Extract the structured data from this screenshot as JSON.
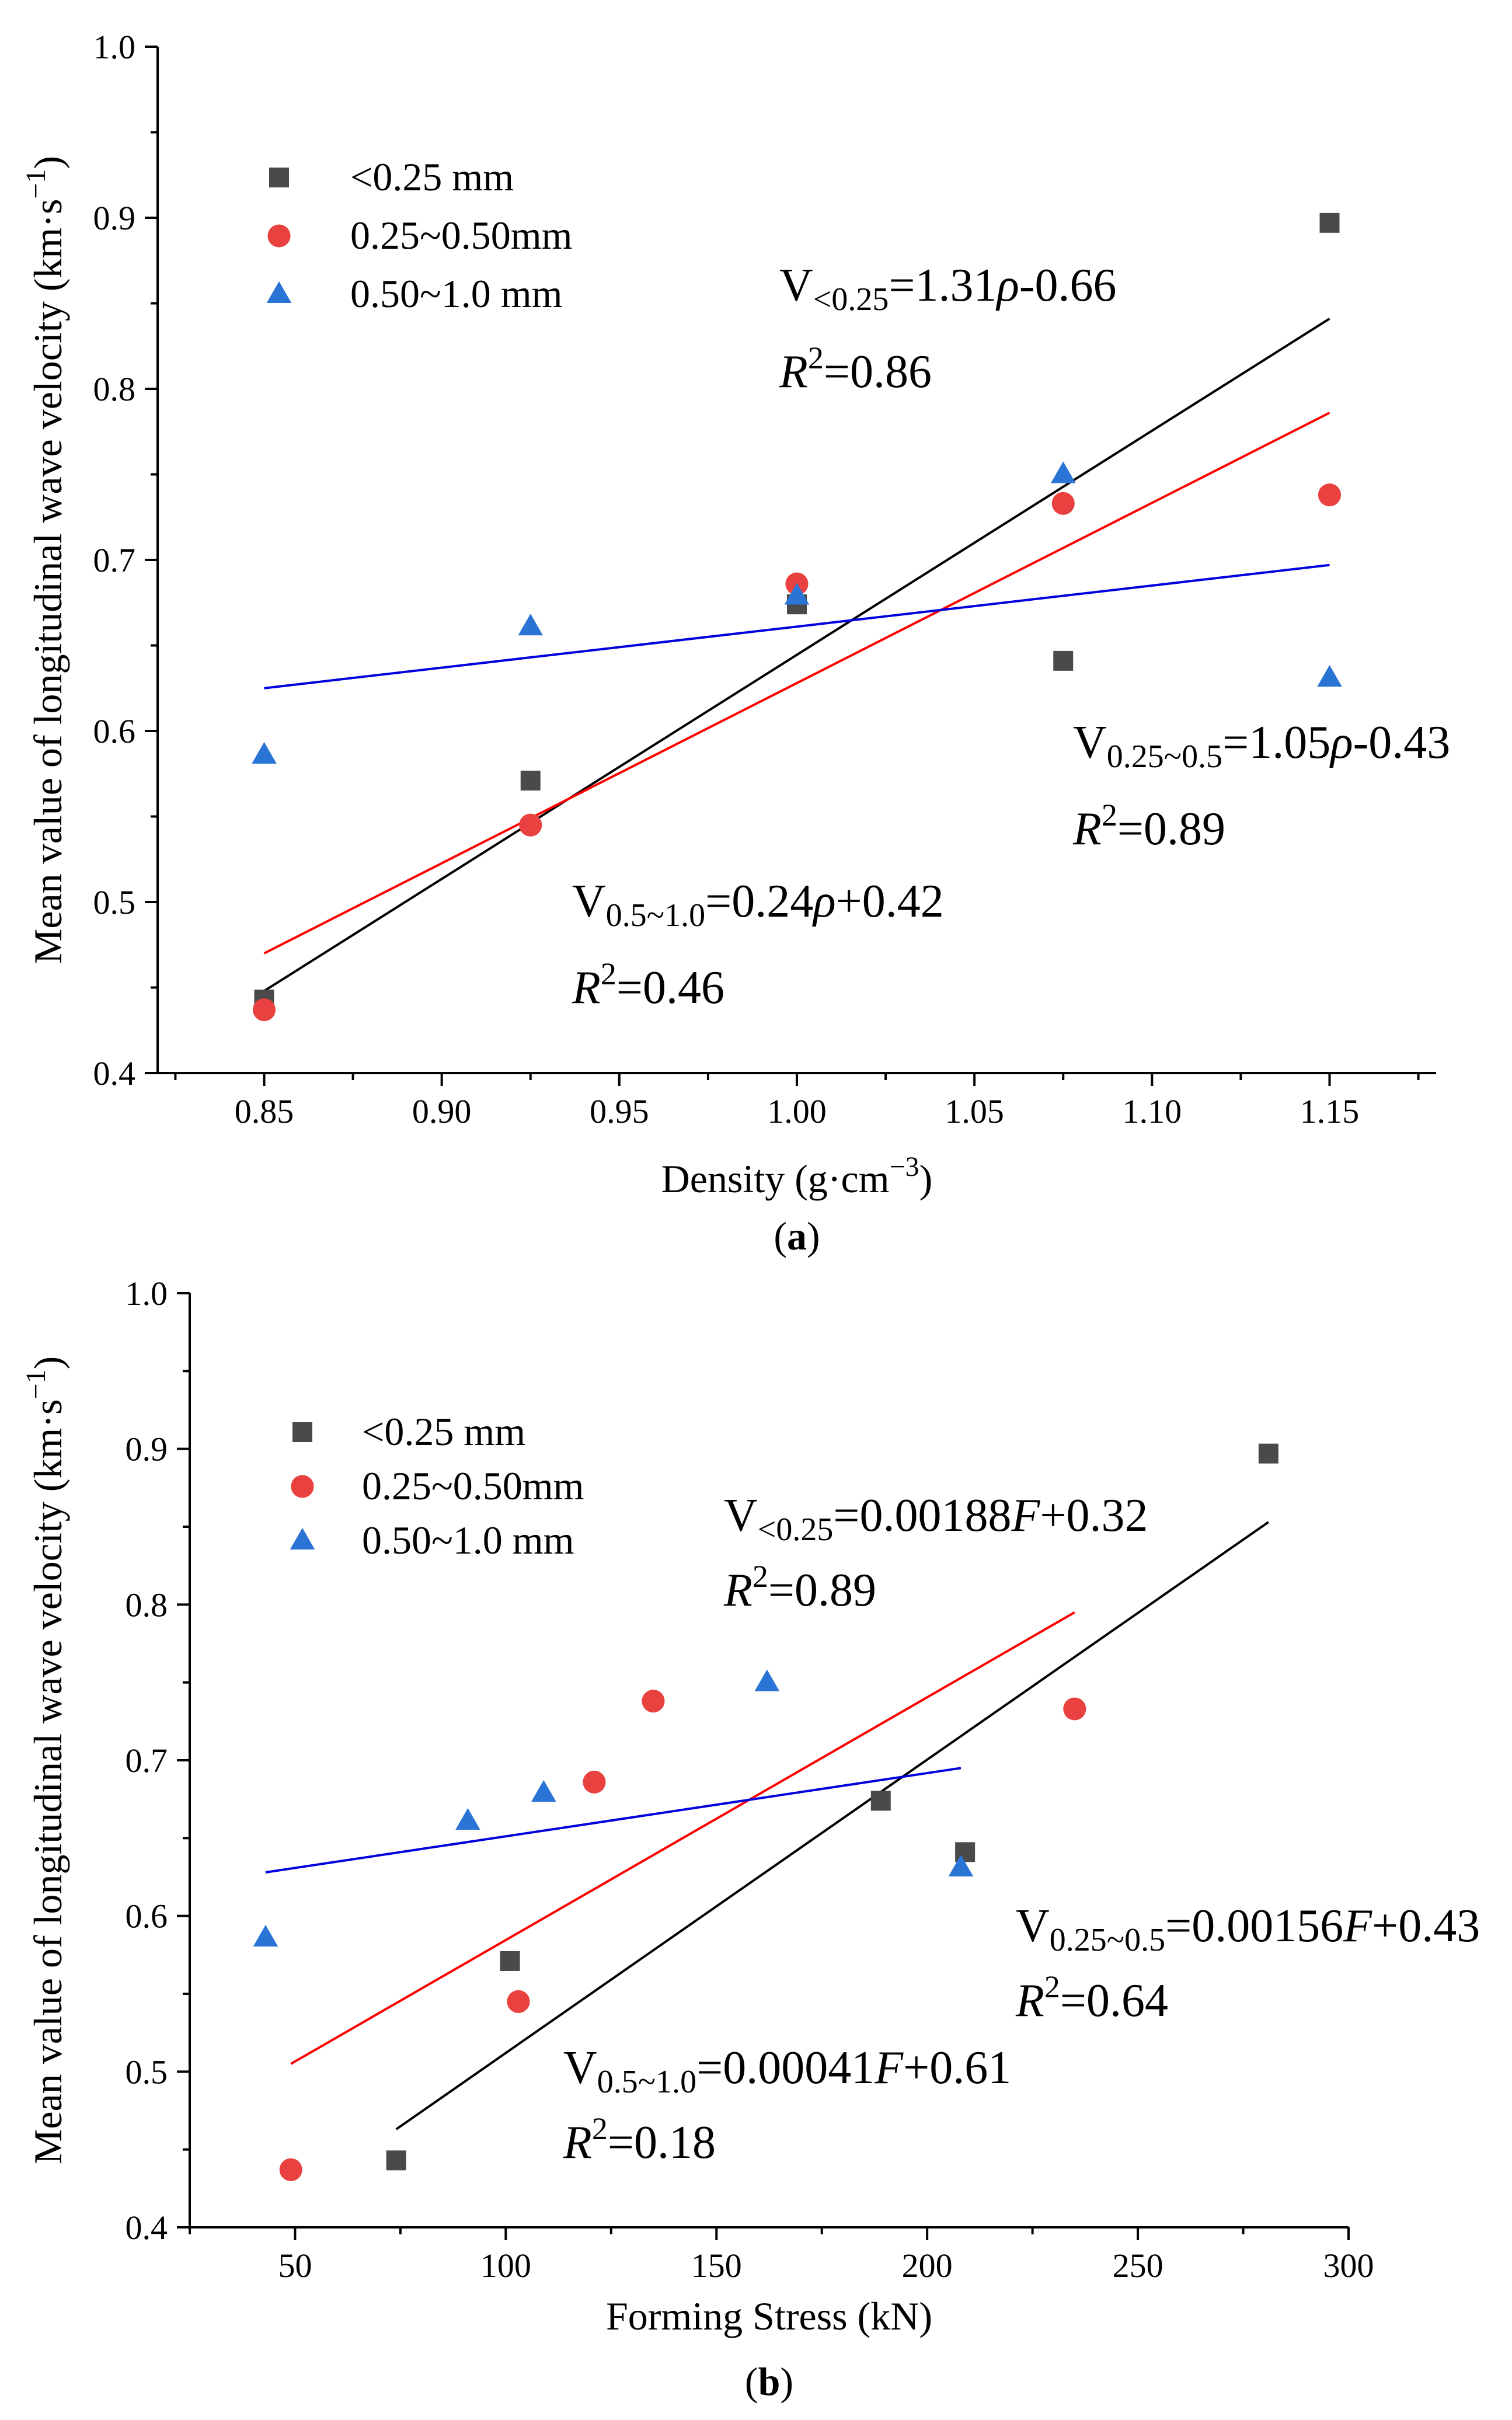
{
  "colors": {
    "series_lt025": "#4a4a4a",
    "series_025_050": "#e8413f",
    "series_050_100": "#2a74d6",
    "fit_lt025": "#000000",
    "fit_025_050": "#ff0000",
    "fit_050_100": "#0000dd"
  },
  "chart_data": [
    {
      "type": "scatter",
      "panel_label": "a",
      "xlabel": "Density (g·cm",
      "xlabel_sup": "−3",
      "xlabel_close": ")",
      "ylabel": "Mean value of longitudinal wave velocity (km·s",
      "ylabel_sup": "−1",
      "ylabel_close": ")",
      "xlim": [
        0.82,
        1.18
      ],
      "ylim": [
        0.4,
        1.0
      ],
      "xticks": [
        0.85,
        0.9,
        0.95,
        1.0,
        1.05,
        1.1,
        1.15
      ],
      "xtick_labels": [
        "0.85",
        "0.90",
        "0.95",
        "1.00",
        "1.05",
        "1.10",
        "1.15"
      ],
      "yticks": [
        0.4,
        0.5,
        0.6,
        0.7,
        0.8,
        0.9,
        1.0
      ],
      "ytick_labels": [
        "0.4",
        "0.5",
        "0.6",
        "0.7",
        "0.8",
        "0.9",
        "1.0"
      ],
      "series": [
        {
          "name": "<0.25 mm",
          "marker": "square",
          "x": [
            0.85,
            0.925,
            1.0,
            1.075,
            1.15
          ],
          "y": [
            0.443,
            0.571,
            0.674,
            0.641,
            0.897
          ]
        },
        {
          "name": "0.25~0.50mm",
          "marker": "circle",
          "x": [
            0.85,
            0.925,
            1.0,
            1.075,
            1.15
          ],
          "y": [
            0.437,
            0.545,
            0.686,
            0.733,
            0.738
          ]
        },
        {
          "name": "0.50~1.0 mm",
          "marker": "triangle",
          "x": [
            0.85,
            0.925,
            1.0,
            1.075,
            1.15
          ],
          "y": [
            0.586,
            0.661,
            0.679,
            0.75,
            0.631
          ]
        }
      ],
      "fits": [
        {
          "name": "<0.25 mm",
          "x": [
            0.85,
            1.15
          ],
          "y": [
            0.448,
            0.841
          ]
        },
        {
          "name": "0.25~0.50mm",
          "x": [
            0.85,
            1.15
          ],
          "y": [
            0.47,
            0.786
          ]
        },
        {
          "name": "0.50~1.0 mm",
          "x": [
            0.85,
            1.15
          ],
          "y": [
            0.625,
            0.697
          ]
        }
      ],
      "equations": [
        {
          "prefix": "V",
          "sub": "<0.25",
          "rhs_a": "=1.31",
          "var": "ρ",
          "rhs_b": "-0.66",
          "r2_value": "=0.86"
        },
        {
          "prefix": "V",
          "sub": "0.25~0.5",
          "rhs_a": "=1.05",
          "var": "ρ",
          "rhs_b": "-0.43",
          "r2_value": "=0.89"
        },
        {
          "prefix": "V",
          "sub": "0.5~1.0",
          "rhs_a": "=0.24",
          "var": "ρ",
          "rhs_b": "+0.42",
          "r2_value": "=0.46"
        }
      ]
    },
    {
      "type": "scatter",
      "panel_label": "b",
      "xlabel": "Forming Stress (kN)",
      "ylabel": "Mean value of longitudinal wave velocity (km·s",
      "ylabel_sup": "−1",
      "ylabel_close": ")",
      "xlim": [
        25,
        300
      ],
      "ylim": [
        0.4,
        1.0
      ],
      "xticks": [
        50,
        100,
        150,
        200,
        250,
        300
      ],
      "xtick_labels": [
        "50",
        "100",
        "150",
        "200",
        "250",
        "300"
      ],
      "yticks": [
        0.4,
        0.5,
        0.6,
        0.7,
        0.8,
        0.9,
        1.0
      ],
      "ytick_labels": [
        "0.4",
        "0.5",
        "0.6",
        "0.7",
        "0.8",
        "0.9",
        "1.0"
      ],
      "series": [
        {
          "name": "<0.25 mm",
          "marker": "square",
          "x": [
            74,
            101,
            189,
            209,
            281
          ],
          "y": [
            0.443,
            0.571,
            0.674,
            0.641,
            0.897
          ]
        },
        {
          "name": "0.25~0.50mm",
          "marker": "circle",
          "x": [
            49,
            103,
            121,
            135,
            235
          ],
          "y": [
            0.437,
            0.545,
            0.686,
            0.738,
            0.733
          ]
        },
        {
          "name": "0.50~1.0 mm",
          "marker": "triangle",
          "x": [
            43,
            91,
            109,
            162,
            208
          ],
          "y": [
            0.586,
            0.661,
            0.679,
            0.75,
            0.631
          ]
        }
      ],
      "fits": [
        {
          "name": "<0.25 mm",
          "x": [
            74,
            281
          ],
          "y": [
            0.463,
            0.853
          ]
        },
        {
          "name": "0.25~0.50mm",
          "x": [
            49,
            235
          ],
          "y": [
            0.505,
            0.795
          ]
        },
        {
          "name": "0.50~1.0 mm",
          "x": [
            43,
            208
          ],
          "y": [
            0.628,
            0.695
          ]
        }
      ],
      "equations": [
        {
          "prefix": "V",
          "sub": "<0.25",
          "rhs_a": "=0.00188",
          "var": "F",
          "rhs_b": "+0.32",
          "r2_value": "=0.89"
        },
        {
          "prefix": "V",
          "sub": "0.25~0.5",
          "rhs_a": "=0.00156",
          "var": "F",
          "rhs_b": "+0.43",
          "r2_value": "=0.64"
        },
        {
          "prefix": "V",
          "sub": "0.5~1.0",
          "rhs_a": "=0.00041",
          "var": "F",
          "rhs_b": "+0.61",
          "r2_value": "=0.18"
        }
      ]
    }
  ],
  "r2_symbol": "R",
  "r2_power": "2"
}
